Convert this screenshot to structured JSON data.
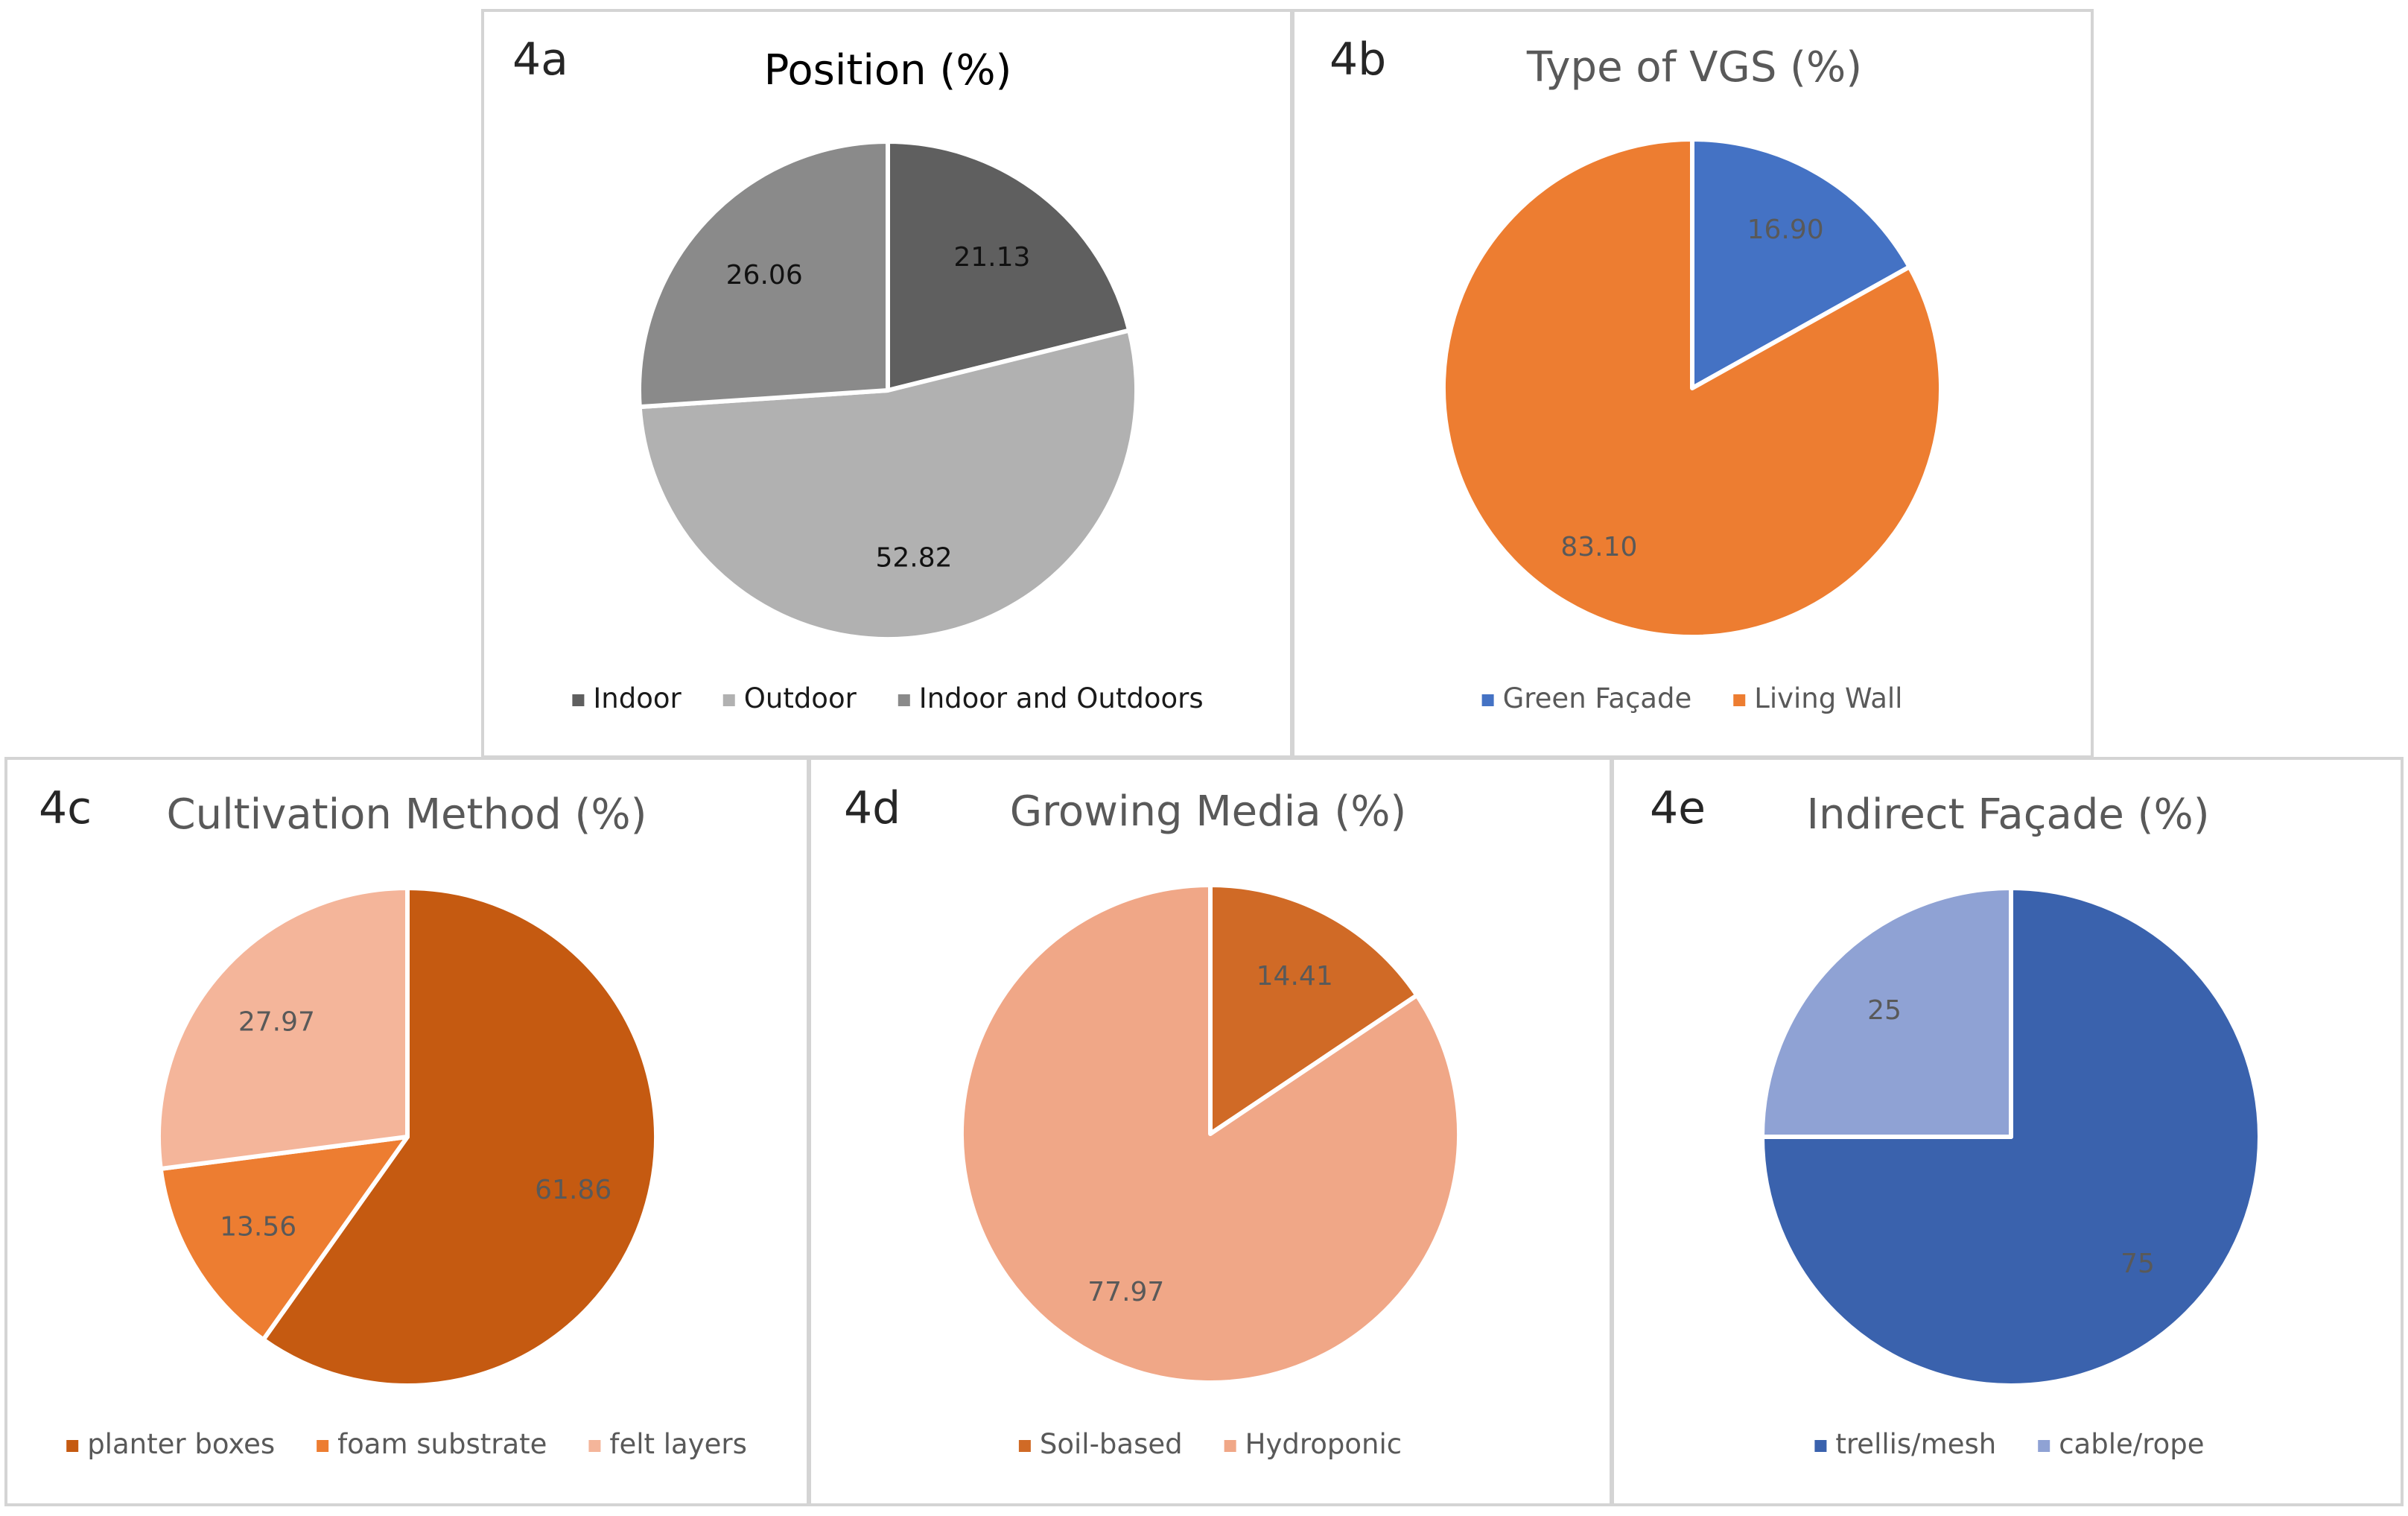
{
  "chart_data": [
    {
      "id": "4a",
      "type": "pie",
      "panel_label": "4a",
      "title": "Position (%)",
      "legend_position": "bottom",
      "slices": [
        {
          "name": "Indoor",
          "value": 21.13,
          "label": "21.13",
          "color": "#5f5f5f"
        },
        {
          "name": "Outdoor",
          "value": 52.82,
          "label": "52.82",
          "color": "#b1b1b1"
        },
        {
          "name": "Indoor and Outdoors",
          "value": 26.06,
          "label": "26.06",
          "color": "#8a8a8a"
        }
      ]
    },
    {
      "id": "4b",
      "type": "pie",
      "panel_label": "4b",
      "title": "Type of VGS (%)",
      "legend_position": "bottom",
      "slices": [
        {
          "name": "Green Façade",
          "value": 16.9,
          "label": "16.90",
          "color": "#4472c4"
        },
        {
          "name": "Living Wall",
          "value": 83.1,
          "label": "83.10",
          "color": "#ed7d31"
        }
      ]
    },
    {
      "id": "4c",
      "type": "pie",
      "panel_label": "4c",
      "title": "Cultivation Method (%)",
      "legend_position": "bottom",
      "slices": [
        {
          "name": "planter boxes",
          "value": 61.86,
          "label": "61.86",
          "color": "#c55a11"
        },
        {
          "name": "foam substrate",
          "value": 13.56,
          "label": "13.56",
          "color": "#ed7d31"
        },
        {
          "name": "felt layers",
          "value": 27.97,
          "label": "27.97",
          "color": "#f4b59a"
        }
      ]
    },
    {
      "id": "4d",
      "type": "pie",
      "panel_label": "4d",
      "title": "Growing Media (%)",
      "legend_position": "bottom",
      "slices": [
        {
          "name": "Soil-based",
          "value": 14.41,
          "label": "14.41",
          "color": "#d06a26"
        },
        {
          "name": "Hydroponic",
          "value": 77.97,
          "label": "77.97",
          "color": "#f0a787"
        }
      ]
    },
    {
      "id": "4e",
      "type": "pie",
      "panel_label": "4e",
      "title": "Indirect Façade (%)",
      "legend_position": "bottom",
      "slices": [
        {
          "name": "trellis/mesh",
          "value": 75,
          "label": "75",
          "color": "#3a62ad"
        },
        {
          "name": "cable/rope",
          "value": 25,
          "label": "25",
          "color": "#8fa2d4"
        }
      ]
    }
  ]
}
